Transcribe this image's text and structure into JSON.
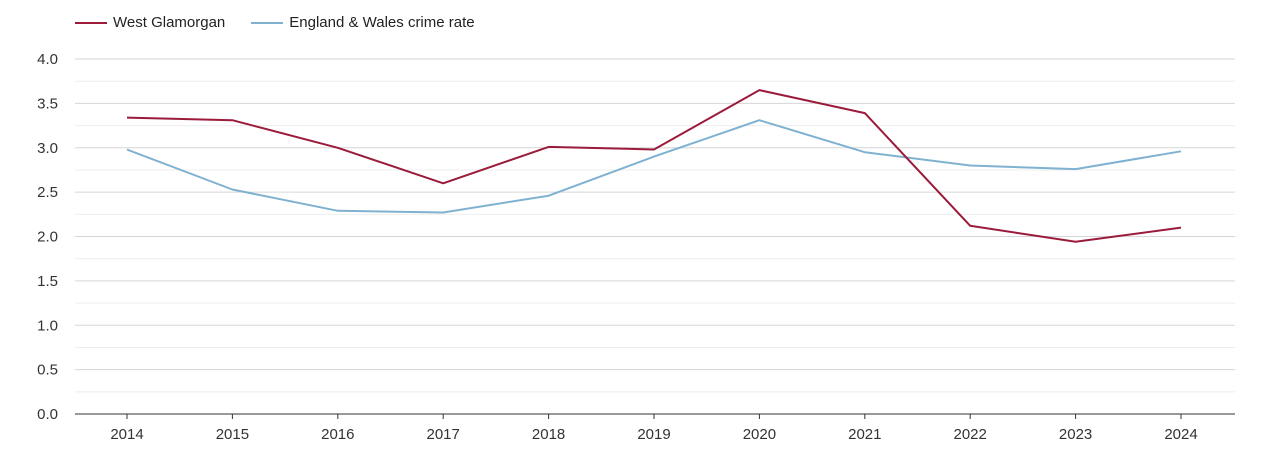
{
  "chart_data": {
    "type": "line",
    "title": "",
    "xlabel": "",
    "ylabel": "",
    "categories": [
      "2014",
      "2015",
      "2016",
      "2017",
      "2018",
      "2019",
      "2020",
      "2021",
      "2022",
      "2023",
      "2024"
    ],
    "ylim": [
      0,
      4.0
    ],
    "yticks": [
      "0.0",
      "0.5",
      "1.0",
      "1.5",
      "2.0",
      "2.5",
      "3.0",
      "3.5",
      "4.0"
    ],
    "grid": true,
    "legend_position": "top-left",
    "series": [
      {
        "name": "West Glamorgan",
        "color": "#9b1b3a",
        "values": [
          3.34,
          3.31,
          3.0,
          2.6,
          3.01,
          2.98,
          3.65,
          3.39,
          2.12,
          1.94,
          2.1
        ]
      },
      {
        "name": "England & Wales crime rate",
        "color": "#7fb2d1",
        "values": [
          2.98,
          2.53,
          2.29,
          2.27,
          2.46,
          2.9,
          3.31,
          2.95,
          2.8,
          2.76,
          2.96
        ]
      }
    ]
  }
}
